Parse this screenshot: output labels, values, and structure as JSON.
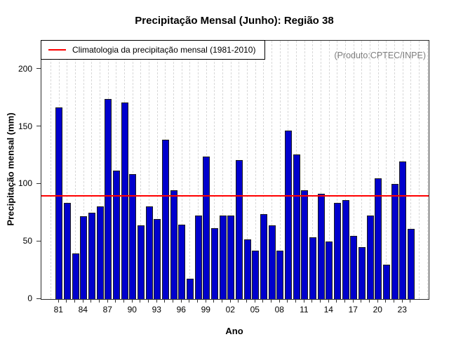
{
  "title": "Precipitação Mensal (Junho): Região 38",
  "legend": {
    "label": "Climatologia da precipitação mensal (1981-2010)"
  },
  "watermark": "(Produto:CPTEC/INPE)",
  "chart_data": {
    "type": "bar",
    "title": "Precipitação Mensal (Junho): Região 38",
    "xlabel": "Ano",
    "ylabel": "Precipitação mensal (mm)",
    "ylim": [
      0,
      225
    ],
    "y_ticks": [
      0,
      50,
      100,
      150,
      200
    ],
    "x_tick_labels": [
      "81",
      "84",
      "87",
      "90",
      "93",
      "96",
      "99",
      "02",
      "05",
      "08",
      "11",
      "14",
      "17",
      "20",
      "23"
    ],
    "years": [
      1981,
      1982,
      1983,
      1984,
      1985,
      1986,
      1987,
      1988,
      1989,
      1990,
      1991,
      1992,
      1993,
      1994,
      1995,
      1996,
      1997,
      1998,
      1999,
      2000,
      2001,
      2002,
      2003,
      2004,
      2005,
      2006,
      2007,
      2008,
      2009,
      2010,
      2011,
      2012,
      2013,
      2014,
      2015,
      2016,
      2017,
      2018,
      2019,
      2020,
      2021,
      2022,
      2023,
      2024
    ],
    "values": [
      167,
      84,
      40,
      72,
      75,
      81,
      174,
      112,
      171,
      109,
      64,
      81,
      70,
      139,
      95,
      65,
      18,
      73,
      124,
      62,
      73,
      73,
      121,
      52,
      42,
      74,
      64,
      42,
      147,
      126,
      95,
      54,
      92,
      50,
      84,
      86,
      55,
      45,
      73,
      105,
      30,
      100,
      120,
      61
    ],
    "climatology_value": 90,
    "climatology_period": "1981-2010",
    "series_name": "Precipitação mensal (mm)",
    "bar_color": "#0000CD",
    "climatology_line_color": "#FF0000",
    "grid": "vertical-dashed",
    "legend_position": "top-left"
  }
}
